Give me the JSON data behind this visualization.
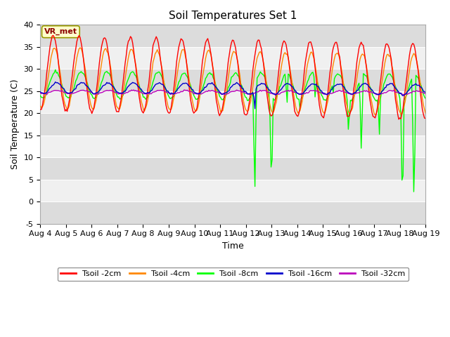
{
  "title": "Soil Temperatures Set 1",
  "xlabel": "Time",
  "ylabel": "Soil Temperature (C)",
  "ylim": [
    -5,
    40
  ],
  "xlim": [
    0,
    15
  ],
  "x_tick_labels": [
    "Aug 4",
    "Aug 5",
    "Aug 6",
    "Aug 7",
    "Aug 8",
    "Aug 9",
    "Aug 10",
    "Aug 11",
    "Aug 12",
    "Aug 13",
    "Aug 14",
    "Aug 15",
    "Aug 16",
    "Aug 17",
    "Aug 18",
    "Aug 19"
  ],
  "series_colors": [
    "#ff0000",
    "#ff8800",
    "#00ff00",
    "#0000cc",
    "#bb00bb"
  ],
  "series_labels": [
    "Tsoil -2cm",
    "Tsoil -4cm",
    "Tsoil -8cm",
    "Tsoil -16cm",
    "Tsoil -32cm"
  ],
  "annotation_text": "VR_met",
  "background_color": "#ffffff",
  "plot_bg_light": "#f0f0f0",
  "plot_bg_dark": "#dcdcdc",
  "title_fontsize": 11,
  "label_fontsize": 9,
  "tick_fontsize": 8
}
